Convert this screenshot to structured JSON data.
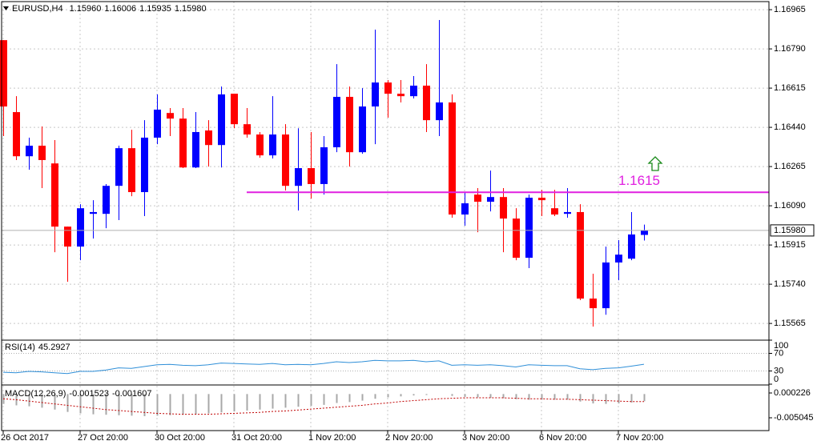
{
  "chart_data": [
    {
      "type": "candlestick",
      "symbol": "EURUSD,H4",
      "quote_labels": [
        "1.15960",
        "1.16006",
        "1.15935",
        "1.15980"
      ],
      "categories": [
        "26 Oct 2017",
        null,
        null,
        null,
        null,
        null,
        "27 Oct 20:00",
        null,
        null,
        null,
        null,
        null,
        "30 Oct 20:00",
        null,
        null,
        null,
        null,
        null,
        "31 Oct 20:00",
        null,
        null,
        null,
        null,
        null,
        "1 Nov 20:00",
        null,
        null,
        null,
        null,
        null,
        "2 Nov 20:00",
        null,
        null,
        null,
        null,
        null,
        "3 Nov 20:00",
        null,
        null,
        null,
        null,
        null,
        "6 Nov 20:00",
        null,
        null,
        null,
        null,
        null,
        "7 Nov 20:00",
        null,
        null
      ],
      "open": [
        1.16829,
        1.16508,
        1.16311,
        1.16358,
        1.16279,
        1.15997,
        1.15908,
        1.16054,
        1.16054,
        1.16179,
        1.16347,
        1.16151,
        1.16394,
        1.16504,
        1.16479,
        1.16261,
        1.16426,
        1.16361,
        1.1659,
        1.16454,
        1.16408,
        1.16315,
        1.16408,
        1.16179,
        1.16258,
        1.16187,
        1.16351,
        1.16576,
        1.16329,
        1.16533,
        1.1664,
        1.1659,
        1.16579,
        1.16626,
        1.16472,
        1.16551,
        1.16051,
        1.1614,
        1.16108,
        1.16129,
        1.16033,
        1.15858,
        1.16126,
        1.16079,
        1.16054,
        1.16062,
        1.15676,
        1.15633,
        1.15837,
        1.15854,
        1.1596
      ],
      "high": [
        1.16829,
        1.16579,
        1.16394,
        1.16444,
        1.16383,
        1.15997,
        1.16097,
        1.16115,
        1.16187,
        1.16358,
        1.16429,
        1.16472,
        1.16587,
        1.16526,
        1.16526,
        1.16508,
        1.16472,
        1.16622,
        1.1659,
        1.16526,
        1.16419,
        1.16579,
        1.16454,
        1.16436,
        1.16419,
        1.16401,
        1.16722,
        1.16622,
        1.16615,
        1.16876,
        1.16651,
        1.16651,
        1.16669,
        1.16722,
        1.16919,
        1.16587,
        1.16151,
        1.16169,
        1.16247,
        1.16169,
        1.16079,
        1.1614,
        1.16161,
        1.16161,
        1.16169,
        1.16097,
        1.15787,
        1.15908,
        1.15937,
        1.16062,
        1.16006
      ],
      "low": [
        1.16401,
        1.16294,
        1.16251,
        1.16169,
        1.15883,
        1.15751,
        1.15847,
        1.15944,
        1.1599,
        1.16026,
        1.16133,
        1.16044,
        1.16365,
        1.16401,
        1.16258,
        1.16258,
        1.16265,
        1.16261,
        1.16436,
        1.16394,
        1.16304,
        1.16301,
        1.16158,
        1.16069,
        1.16122,
        1.1614,
        1.16329,
        1.16265,
        1.16322,
        1.16365,
        1.16483,
        1.16551,
        1.16569,
        1.16419,
        1.16401,
        1.16037,
        1.16001,
        1.15972,
        1.16065,
        1.15883,
        1.15847,
        1.15812,
        1.16044,
        1.16044,
        1.16037,
        1.15669,
        1.15551,
        1.15604,
        1.15758,
        1.15847,
        1.15935
      ],
      "close": [
        1.16533,
        1.16311,
        1.16358,
        1.16294,
        1.15997,
        1.15908,
        1.16079,
        1.16062,
        1.16179,
        1.16347,
        1.16151,
        1.16394,
        1.16519,
        1.16479,
        1.16261,
        1.16419,
        1.16361,
        1.16587,
        1.16454,
        1.16408,
        1.16315,
        1.16408,
        1.16179,
        1.16258,
        1.16187,
        1.16351,
        1.16576,
        1.16329,
        1.16533,
        1.1664,
        1.1659,
        1.16579,
        1.16626,
        1.16472,
        1.16551,
        1.16051,
        1.16101,
        1.16108,
        1.16129,
        1.16033,
        1.15858,
        1.16126,
        1.16115,
        1.16051,
        1.16062,
        1.15676,
        1.15633,
        1.15837,
        1.15872,
        1.15962,
        1.1598
      ],
      "up_color": "#0000ff",
      "down_color": "#ff0000",
      "ylim": [
        1.15494,
        1.17001
      ],
      "yticks": [
        1.16965,
        {
          "value": 1.1679,
          "label": "1.16790"
        },
        1.16615,
        {
          "value": 1.1644,
          "label": "1.16440"
        },
        1.16265,
        {
          "value": 1.1609,
          "label": "1.16090"
        },
        1.15915,
        {
          "value": 1.1574,
          "label": "1.15740"
        },
        1.15565
      ],
      "grid": true,
      "level": 1.1615,
      "level_color": "#e020e0"
    },
    {
      "type": "line",
      "label": "RSI(14)",
      "values": [
        27,
        26,
        29,
        28,
        26,
        24,
        29,
        29,
        32,
        37,
        36,
        40,
        44,
        45,
        43,
        42,
        44,
        48,
        47,
        46,
        45,
        47,
        44,
        45,
        44,
        47,
        51,
        49,
        51,
        54,
        53,
        53,
        54,
        51,
        53,
        43,
        44,
        43,
        44,
        42,
        39,
        44,
        43,
        42,
        42,
        35,
        33,
        36,
        37,
        41,
        45.2927
      ],
      "color": "#2f8fd8",
      "ylim": [
        0,
        100
      ],
      "yticks": [
        100,
        70,
        30,
        0
      ],
      "levels": [
        70,
        30
      ]
    },
    {
      "type": "macd",
      "label": "MACD(12,26,9)",
      "histogram": [
        -0.0021,
        -0.0024,
        -0.0026,
        -0.0029,
        -0.0033,
        -0.0038,
        -0.0041,
        -0.0043,
        -0.0044,
        -0.0045,
        -0.0046,
        -0.0047,
        -0.0046,
        -0.0045,
        -0.0044,
        -0.0043,
        -0.0041,
        -0.0039,
        -0.0037,
        -0.0035,
        -0.0033,
        -0.0031,
        -0.0029,
        -0.0027,
        -0.0025,
        -0.0023,
        -0.0019,
        -0.0017,
        -0.0014,
        -0.001,
        -0.0007,
        -0.0005,
        -0.0003,
        -0.0002,
        0,
        -0.0004,
        -0.0006,
        -0.0007,
        -0.0008,
        -0.0009,
        -0.0011,
        -0.0012,
        -0.0012,
        -0.0012,
        -0.0012,
        -0.0016,
        -0.002,
        -0.0021,
        -0.002,
        -0.0018,
        -0.001523
      ],
      "signal": [
        -0.001,
        -0.0012,
        -0.0015,
        -0.0018,
        -0.0021,
        -0.0024,
        -0.0027,
        -0.003,
        -0.0033,
        -0.0035,
        -0.0037,
        -0.0039,
        -0.0041,
        -0.0042,
        -0.0043,
        -0.0043,
        -0.0043,
        -0.0042,
        -0.0041,
        -0.004,
        -0.0039,
        -0.0037,
        -0.0036,
        -0.0034,
        -0.0032,
        -0.003,
        -0.0028,
        -0.0026,
        -0.0024,
        -0.0021,
        -0.0019,
        -0.0016,
        -0.0014,
        -0.0012,
        -0.001,
        -0.0009,
        -0.0008,
        -0.0008,
        -0.0008,
        -0.0008,
        -0.0009,
        -0.001,
        -0.001,
        -0.0011,
        -0.0011,
        -0.0012,
        -0.0013,
        -0.0014,
        -0.0015,
        -0.0016,
        -0.001607
      ],
      "hist_color": "#a8a8a8",
      "signal_color": "#c00000",
      "ylim": [
        -0.007765,
        0.001756
      ],
      "yticks": [
        0.000226,
        -0.005045
      ]
    }
  ]
}
